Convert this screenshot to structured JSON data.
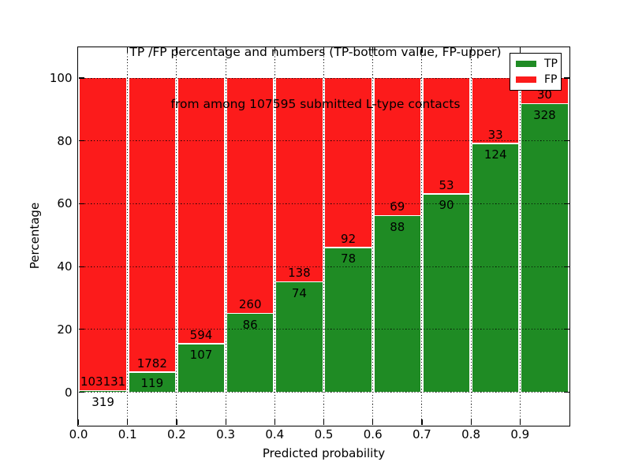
{
  "chart_data": {
    "type": "bar",
    "stacked": true,
    "title": "TP /FP percentage and numbers (TP-bottom value, FP-upper)\nfrom among 107595 submitted L-type contacts",
    "title_lines": [
      "TP /FP percentage and numbers (TP-bottom value, FP-upper)",
      "from among 107595 submitted L-type contacts"
    ],
    "total_submitted": 107595,
    "xlabel": "Predicted probability",
    "ylabel": "Percentage",
    "x_tick_labels": [
      "0.0",
      "0.1",
      "0.2",
      "0.3",
      "0.4",
      "0.5",
      "0.6",
      "0.7",
      "0.8",
      "0.9"
    ],
    "y_tick_values": [
      0,
      20,
      40,
      60,
      80,
      100
    ],
    "xlim": [
      0.0,
      1.0
    ],
    "ylim": [
      -10.5,
      110
    ],
    "categories": [
      "0.0-0.1",
      "0.1-0.2",
      "0.2-0.3",
      "0.3-0.4",
      "0.4-0.5",
      "0.5-0.6",
      "0.6-0.7",
      "0.7-0.8",
      "0.8-0.9",
      "0.9-1.0"
    ],
    "series": [
      {
        "name": "TP",
        "color": "#1f8b24",
        "values": [
          319,
          119,
          107,
          86,
          74,
          78,
          88,
          90,
          124,
          328
        ]
      },
      {
        "name": "FP",
        "color": "#fc1b1b",
        "values": [
          103131,
          1782,
          594,
          260,
          138,
          92,
          69,
          53,
          33,
          30
        ]
      }
    ],
    "tp_percent_per_bin": [
      0.31,
      6.26,
      15.26,
      24.86,
      34.91,
      45.88,
      56.05,
      62.94,
      78.98,
      91.62
    ],
    "bar_display": "each bin stacked to 100%, TP bottom, FP top, counts as text labels at segment boundary",
    "legend": {
      "position": "upper right",
      "entries": [
        "TP",
        "FP"
      ]
    },
    "grid": {
      "style": "dotted",
      "color": "#000000"
    }
  }
}
